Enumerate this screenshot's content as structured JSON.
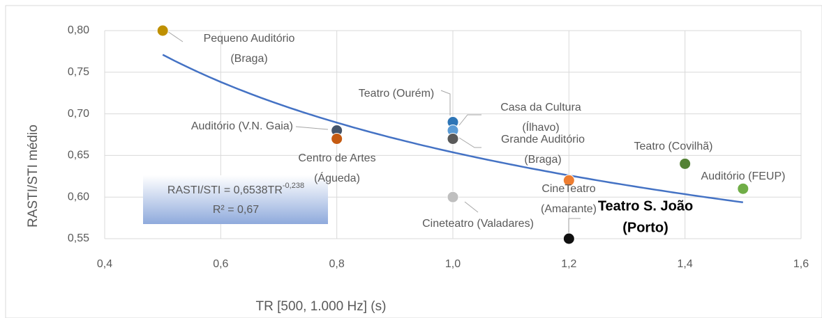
{
  "chart_data": {
    "type": "scatter",
    "y_axis_label": "RASTI/STI médio",
    "x_axis_label": "TR [500, 1.000 Hz] (s)",
    "xlim": [
      0.4,
      1.6
    ],
    "xticks": [
      {
        "value": 0.4,
        "label": "0,4"
      },
      {
        "value": 0.6,
        "label": "0,6"
      },
      {
        "value": 0.8,
        "label": "0,8"
      },
      {
        "value": 1.0,
        "label": "1,0"
      },
      {
        "value": 1.2,
        "label": "1,2"
      },
      {
        "value": 1.4,
        "label": "1,4"
      },
      {
        "value": 1.6,
        "label": "1,6"
      }
    ],
    "ylim": [
      0.55,
      0.8
    ],
    "yticks": [
      {
        "value": 0.55,
        "label": "0,55"
      },
      {
        "value": 0.6,
        "label": "0,60"
      },
      {
        "value": 0.65,
        "label": "0,65"
      },
      {
        "value": 0.7,
        "label": "0,70"
      },
      {
        "value": 0.75,
        "label": "0,75"
      },
      {
        "value": 0.8,
        "label": "0,80"
      }
    ],
    "grid": true,
    "x": [
      0.5,
      0.8,
      0.8,
      1.0,
      1.0,
      1.0,
      1.0,
      1.2,
      1.2,
      1.4,
      1.5
    ],
    "values": [
      0.8,
      0.68,
      0.67,
      0.69,
      0.68,
      0.67,
      0.6,
      0.62,
      0.55,
      0.64,
      0.61
    ],
    "labels": [
      [
        "Pequeno Auditório",
        "(Braga)"
      ],
      [
        "Auditório (V.N. Gaia)"
      ],
      [
        "Centro de Artes",
        "(Águeda)"
      ],
      [
        "Teatro (Ourém)"
      ],
      [
        "Casa da Cultura",
        "(Ílhavo)"
      ],
      [
        "Grande Auditório",
        "(Braga)"
      ],
      [
        "Cineteatro (Valadares)"
      ],
      [
        "CineTeatro",
        "(Amarante)"
      ],
      [
        "Teatro S. João",
        "(Porto)"
      ],
      [
        "Teatro (Covilhã)"
      ],
      [
        "Auditório (FEUP)"
      ]
    ],
    "colors": [
      "#bf9000",
      "#44546a",
      "#c55a11",
      "#2e75b6",
      "#5b9bd5",
      "#595959",
      "#bfbfbf",
      "#ed7d31",
      "#111111",
      "#548235",
      "#70ad47"
    ],
    "trendline": {
      "kind": "power",
      "coefficient": 0.6538,
      "exponent": -0.238,
      "color": "#4472c4",
      "equation_label": "RASTI/STI = 0,6538TR",
      "exponent_label": "-0,238",
      "r2_label": "R² = 0,67"
    }
  }
}
